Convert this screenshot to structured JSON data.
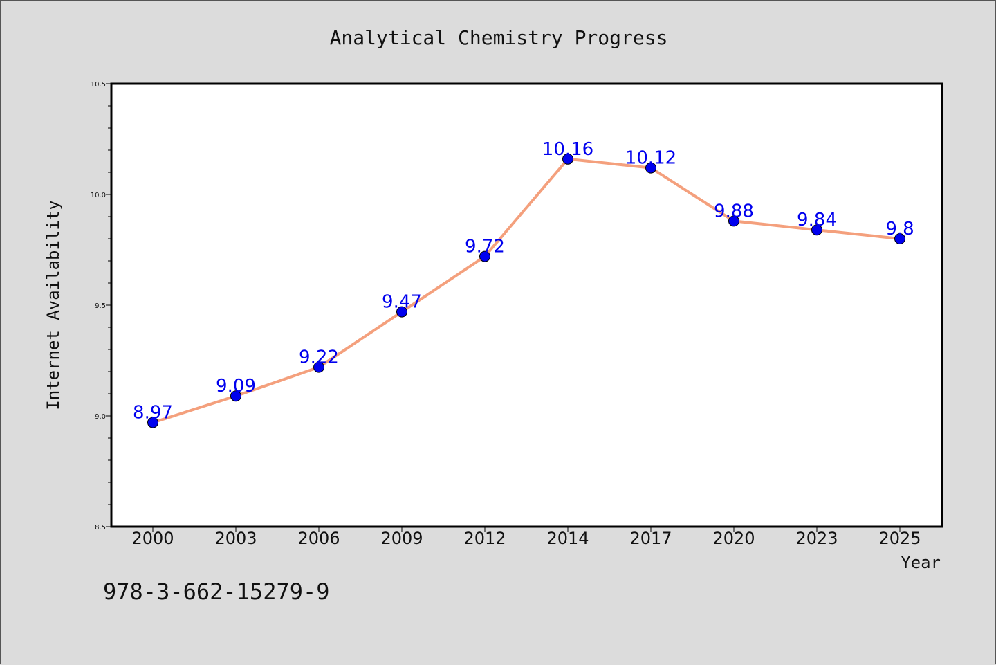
{
  "chart_data": {
    "type": "line",
    "title": "Analytical Chemistry Progress",
    "xlabel": "Year",
    "ylabel": "Internet Availability",
    "categories": [
      "2000",
      "2003",
      "2006",
      "2009",
      "2012",
      "2014",
      "2017",
      "2020",
      "2023",
      "2025"
    ],
    "series": [
      {
        "values": [
          8.97,
          9.09,
          9.22,
          9.47,
          9.72,
          10.16,
          10.12,
          9.88,
          9.84,
          9.8
        ],
        "data_labels": [
          "8.97",
          "9.09",
          "9.22",
          "9.47",
          "9.72",
          "10.16",
          "10.12",
          "9.88",
          "9.84",
          "9.8"
        ]
      }
    ],
    "ylim": [
      8.5,
      10.5
    ],
    "y_ticks": [
      "8.5",
      "9.0",
      "9.5",
      "10.0",
      "10.5"
    ],
    "grid": false,
    "legend": "none",
    "colors": {
      "line": "#f4a07d",
      "marker": "#0000ee",
      "marker_edge": "#000000",
      "data_label": "#0000ee",
      "plot_background": "#ffffff",
      "page_background": "#dcdcdc"
    }
  },
  "footnote": "978-3-662-15279-9"
}
